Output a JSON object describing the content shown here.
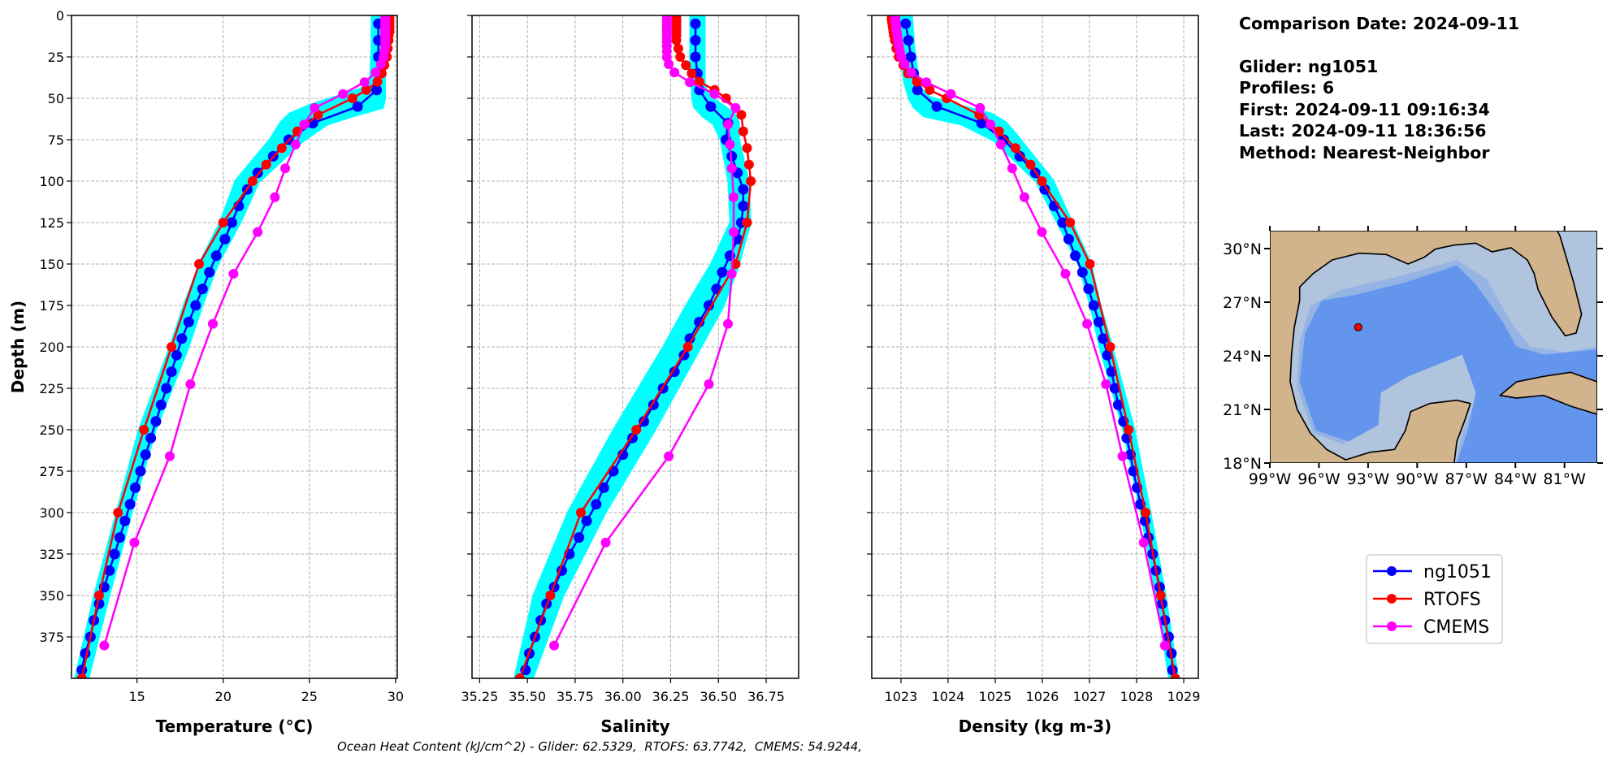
{
  "info": {
    "comparison_date": "Comparison Date: 2024-09-11",
    "glider": "Glider: ng1051",
    "profiles": "Profiles: 6",
    "first": "First: 2024-09-11 09:16:34",
    "last": "Last: 2024-09-11 18:36:56",
    "method": "Method: Nearest-Neighbor"
  },
  "footer": "Ocean Heat Content (kJ/cm^2) - Glider: 62.5329,  RTOFS: 63.7742,  CMEMS: 54.9244,",
  "legend": {
    "placement": "right, below map",
    "items": [
      {
        "label": "ng1051",
        "color": "#0000ff"
      },
      {
        "label": "RTOFS",
        "color": "#ff0000"
      },
      {
        "label": "CMEMS",
        "color": "#ff00ff"
      }
    ],
    "profile_color": "#00ffff"
  },
  "map": {
    "lon_range": [
      -99,
      -79
    ],
    "lat_range": [
      18,
      31
    ],
    "lon_tick_labels": [
      "99°W",
      "96°W",
      "93°W",
      "90°W",
      "87°W",
      "84°W",
      "81°W"
    ],
    "lon_ticks": [
      -99,
      -96,
      -93,
      -90,
      -87,
      -84,
      -81
    ],
    "lat_tick_labels": [
      "18°N",
      "21°N",
      "24°N",
      "27°N",
      "30°N"
    ],
    "lat_ticks": [
      18,
      21,
      24,
      27,
      30
    ],
    "glider_location": {
      "lon": -93.6,
      "lat": 25.6,
      "color": "#ff0000"
    },
    "colors": {
      "land": "#d2b48c",
      "shelf": "#b0c4de",
      "slope": "#95b4e3",
      "deep": "#6495ed"
    }
  },
  "chart_data": [
    {
      "type": "line",
      "xlabel": "Temperature (°C)",
      "ylabel": "Depth (m)",
      "xlim": [
        11.2,
        30.1
      ],
      "ylim": [
        400,
        0
      ],
      "grid": true,
      "xticks": [
        15,
        20,
        25,
        30
      ],
      "xtick_labels": [
        "15",
        "20",
        "25",
        "30"
      ],
      "yticks": [
        0,
        25,
        50,
        75,
        100,
        125,
        150,
        175,
        200,
        225,
        250,
        275,
        300,
        325,
        350,
        375
      ],
      "ytick_labels": [
        "0",
        "25",
        "50",
        "75",
        "100",
        "125",
        "150",
        "175",
        "200",
        "225",
        "250",
        "275",
        "300",
        "325",
        "350",
        "375"
      ],
      "glider_profile_range": {
        "depths": [
          0,
          20,
          40,
          45,
          50,
          55,
          60,
          65,
          75,
          100,
          125,
          150,
          175,
          200,
          250,
          300,
          350,
          400
        ],
        "min": [
          28.7,
          28.7,
          28.6,
          28.0,
          26.5,
          25.0,
          23.9,
          23.4,
          22.8,
          20.8,
          19.9,
          18.7,
          17.8,
          17.0,
          15.2,
          13.9,
          12.6,
          11.5
        ],
        "max": [
          29.3,
          29.3,
          29.3,
          29.3,
          29.3,
          29.2,
          27.5,
          26.0,
          24.6,
          22.0,
          20.9,
          19.6,
          18.7,
          17.9,
          16.0,
          14.6,
          13.3,
          12.1
        ]
      },
      "series": [
        {
          "name": "ng1051",
          "depths": [
            5,
            15,
            25,
            35,
            45,
            55,
            65,
            75,
            85,
            95,
            105,
            115,
            125,
            135,
            145,
            155,
            165,
            175,
            185,
            195,
            205,
            215,
            225,
            235,
            245,
            255,
            265,
            275,
            285,
            295,
            305,
            315,
            325,
            335,
            345,
            355,
            365,
            375,
            385,
            395
          ],
          "values": [
            29.0,
            29.0,
            29.0,
            29.0,
            28.9,
            27.8,
            25.2,
            23.8,
            22.9,
            22.0,
            21.4,
            20.9,
            20.5,
            20.1,
            19.6,
            19.2,
            18.8,
            18.4,
            18.0,
            17.6,
            17.3,
            17.0,
            16.7,
            16.4,
            16.1,
            15.8,
            15.5,
            15.2,
            14.9,
            14.6,
            14.3,
            14.0,
            13.7,
            13.4,
            13.1,
            12.8,
            12.5,
            12.3,
            12.0,
            11.8
          ]
        },
        {
          "name": "RTOFS",
          "depths": [
            0,
            2,
            4,
            6,
            8,
            10,
            12,
            15,
            20,
            25,
            30,
            35,
            40,
            45,
            50,
            60,
            70,
            80,
            90,
            100,
            125,
            150,
            200,
            250,
            300,
            350,
            400
          ],
          "values": [
            29.65,
            29.65,
            29.65,
            29.65,
            29.65,
            29.65,
            29.6,
            29.6,
            29.55,
            29.5,
            29.35,
            29.2,
            28.95,
            28.3,
            27.5,
            25.5,
            24.3,
            23.4,
            22.5,
            21.7,
            20.0,
            18.6,
            17.0,
            15.4,
            13.9,
            12.8,
            11.8
          ]
        },
        {
          "name": "CMEMS",
          "depths": [
            0.5,
            1.5,
            2.6,
            3.8,
            5.1,
            6.4,
            7.9,
            9.6,
            11.4,
            13.5,
            15.8,
            18.5,
            21.6,
            25.2,
            29.4,
            34.4,
            40.3,
            47.4,
            55.8,
            65.8,
            77.9,
            92.3,
            109.7,
            130.7,
            155.9,
            186.1,
            222.5,
            266.0,
            318.1,
            380.2
          ],
          "values": [
            29.4,
            29.4,
            29.4,
            29.4,
            29.4,
            29.4,
            29.4,
            29.4,
            29.4,
            29.4,
            29.4,
            29.4,
            29.35,
            29.3,
            29.15,
            28.85,
            28.2,
            26.95,
            25.3,
            24.7,
            24.2,
            23.6,
            23.0,
            22.0,
            20.6,
            19.4,
            18.1,
            16.9,
            14.85,
            13.1
          ]
        }
      ]
    },
    {
      "type": "line",
      "xlabel": "Salinity",
      "xlim": [
        35.21,
        36.92
      ],
      "ylim": [
        400,
        0
      ],
      "grid": true,
      "xticks": [
        35.25,
        35.5,
        35.75,
        36.0,
        36.25,
        36.5,
        36.75
      ],
      "xtick_labels": [
        "35.25",
        "35.50",
        "35.75",
        "36.00",
        "36.25",
        "36.50",
        "36.75"
      ],
      "yticks": [
        0,
        25,
        50,
        75,
        100,
        125,
        150,
        175,
        200,
        225,
        250,
        275,
        300,
        325,
        350,
        375
      ],
      "glider_profile_range": {
        "depths": [
          0,
          20,
          40,
          45,
          50,
          55,
          60,
          65,
          75,
          100,
          125,
          150,
          175,
          200,
          250,
          300,
          350,
          400
        ],
        "min": [
          36.36,
          36.36,
          36.36,
          36.37,
          36.37,
          36.38,
          36.42,
          36.48,
          36.52,
          36.56,
          36.57,
          36.47,
          36.34,
          36.22,
          35.96,
          35.72,
          35.54,
          35.44
        ],
        "max": [
          36.42,
          36.42,
          36.42,
          36.43,
          36.46,
          36.52,
          36.58,
          36.6,
          36.6,
          36.65,
          36.66,
          36.6,
          36.52,
          36.4,
          36.16,
          35.9,
          35.68,
          35.52
        ]
      },
      "series": [
        {
          "name": "ng1051",
          "depths": [
            5,
            15,
            25,
            35,
            45,
            55,
            65,
            75,
            85,
            95,
            105,
            115,
            125,
            135,
            145,
            155,
            165,
            175,
            185,
            195,
            205,
            215,
            225,
            235,
            245,
            255,
            265,
            275,
            285,
            295,
            305,
            315,
            325,
            335,
            345,
            355,
            365,
            375,
            385,
            395
          ],
          "values": [
            36.38,
            36.38,
            36.38,
            36.39,
            36.4,
            36.46,
            36.55,
            36.54,
            36.57,
            36.6,
            36.63,
            36.63,
            36.62,
            36.6,
            36.56,
            36.52,
            36.49,
            36.45,
            36.4,
            36.35,
            36.32,
            36.27,
            36.21,
            36.16,
            36.11,
            36.05,
            36.0,
            35.95,
            35.9,
            35.86,
            35.81,
            35.77,
            35.72,
            35.68,
            35.64,
            35.6,
            35.57,
            35.54,
            35.51,
            35.49
          ]
        },
        {
          "name": "RTOFS",
          "depths": [
            0,
            2,
            4,
            6,
            8,
            10,
            12,
            15,
            20,
            25,
            30,
            35,
            40,
            45,
            50,
            60,
            70,
            80,
            90,
            100,
            125,
            150,
            200,
            250,
            300,
            350,
            400
          ],
          "values": [
            36.28,
            36.28,
            36.28,
            36.28,
            36.28,
            36.28,
            36.28,
            36.28,
            36.29,
            36.3,
            36.33,
            36.36,
            36.4,
            36.48,
            36.54,
            36.62,
            36.63,
            36.65,
            36.66,
            36.67,
            36.65,
            36.59,
            36.34,
            36.07,
            35.78,
            35.62,
            35.46
          ]
        },
        {
          "name": "CMEMS",
          "depths": [
            0.5,
            1.5,
            2.6,
            3.8,
            5.1,
            6.4,
            7.9,
            9.6,
            11.4,
            13.5,
            15.8,
            18.5,
            21.6,
            25.2,
            29.4,
            34.4,
            40.3,
            47.4,
            55.8,
            65.8,
            77.9,
            92.3,
            109.7,
            130.7,
            155.9,
            186.1,
            222.5,
            266.0,
            318.1,
            380.2
          ],
          "values": [
            36.23,
            36.23,
            36.23,
            36.23,
            36.23,
            36.23,
            36.23,
            36.23,
            36.23,
            36.23,
            36.23,
            36.23,
            36.23,
            36.23,
            36.24,
            36.27,
            36.35,
            36.48,
            36.59,
            36.55,
            36.56,
            36.57,
            36.58,
            36.58,
            36.57,
            36.55,
            36.45,
            36.24,
            35.91,
            35.64
          ]
        }
      ]
    },
    {
      "type": "line",
      "xlabel": "Density (kg m-3)",
      "xlim": [
        1022.38,
        1029.31
      ],
      "ylim": [
        400,
        0
      ],
      "grid": true,
      "xticks": [
        1023,
        1024,
        1025,
        1026,
        1027,
        1028,
        1029
      ],
      "xtick_labels": [
        "1023",
        "1024",
        "1025",
        "1026",
        "1027",
        "1028",
        "1029"
      ],
      "yticks": [
        0,
        25,
        50,
        75,
        100,
        125,
        150,
        175,
        200,
        225,
        250,
        275,
        300,
        325,
        350,
        375
      ],
      "glider_profile_range": {
        "depths": [
          0,
          20,
          40,
          45,
          50,
          55,
          60,
          65,
          75,
          100,
          125,
          150,
          175,
          200,
          250,
          300,
          350,
          400
        ],
        "min": [
          1022.98,
          1023.0,
          1023.1,
          1023.15,
          1023.2,
          1023.3,
          1023.5,
          1024.3,
          1025.0,
          1025.9,
          1026.35,
          1026.8,
          1027.05,
          1027.25,
          1027.75,
          1028.12,
          1028.45,
          1028.72
        ],
        "max": [
          1023.2,
          1023.25,
          1023.35,
          1023.4,
          1023.6,
          1024.2,
          1024.9,
          1025.2,
          1025.5,
          1026.2,
          1026.6,
          1027.0,
          1027.2,
          1027.45,
          1027.92,
          1028.26,
          1028.58,
          1028.85
        ]
      },
      "series": [
        {
          "name": "ng1051",
          "depths": [
            5,
            15,
            25,
            35,
            45,
            55,
            65,
            75,
            85,
            95,
            105,
            115,
            125,
            135,
            145,
            155,
            165,
            175,
            185,
            195,
            205,
            215,
            225,
            235,
            245,
            255,
            265,
            275,
            285,
            295,
            305,
            315,
            325,
            335,
            345,
            355,
            365,
            375,
            385,
            395
          ],
          "values": [
            1023.1,
            1023.16,
            1023.21,
            1023.27,
            1023.35,
            1023.76,
            1024.71,
            1025.18,
            1025.52,
            1025.85,
            1026.05,
            1026.25,
            1026.43,
            1026.56,
            1026.7,
            1026.85,
            1026.98,
            1027.09,
            1027.2,
            1027.29,
            1027.38,
            1027.47,
            1027.54,
            1027.61,
            1027.72,
            1027.79,
            1027.87,
            1027.93,
            1028.01,
            1028.08,
            1028.18,
            1028.25,
            1028.34,
            1028.41,
            1028.49,
            1028.54,
            1028.6,
            1028.68,
            1028.74,
            1028.76
          ]
        },
        {
          "name": "RTOFS",
          "depths": [
            0,
            2,
            4,
            6,
            8,
            10,
            12,
            15,
            20,
            25,
            30,
            35,
            40,
            45,
            50,
            60,
            70,
            80,
            90,
            100,
            125,
            150,
            200,
            250,
            300,
            350,
            400
          ],
          "values": [
            1022.8,
            1022.8,
            1022.81,
            1022.82,
            1022.83,
            1022.84,
            1022.85,
            1022.87,
            1022.9,
            1022.95,
            1023.05,
            1023.15,
            1023.34,
            1023.61,
            1023.97,
            1024.66,
            1025.08,
            1025.43,
            1025.75,
            1025.99,
            1026.59,
            1027.01,
            1027.44,
            1027.83,
            1028.19,
            1028.51,
            1028.82
          ]
        },
        {
          "name": "CMEMS",
          "depths": [
            0.5,
            1.5,
            2.6,
            3.8,
            5.1,
            6.4,
            7.9,
            9.6,
            11.4,
            13.5,
            15.8,
            18.5,
            21.6,
            25.2,
            29.4,
            34.4,
            40.3,
            47.4,
            55.8,
            65.8,
            77.9,
            92.3,
            109.7,
            130.7,
            155.9,
            186.1,
            222.5,
            266.0,
            318.1,
            380.2
          ],
          "values": [
            1022.88,
            1022.88,
            1022.88,
            1022.89,
            1022.89,
            1022.9,
            1022.9,
            1022.91,
            1022.92,
            1022.93,
            1022.94,
            1022.96,
            1022.98,
            1023.01,
            1023.08,
            1023.22,
            1023.54,
            1024.06,
            1024.68,
            1024.9,
            1025.12,
            1025.36,
            1025.62,
            1025.99,
            1026.49,
            1026.95,
            1027.35,
            1027.7,
            1028.15,
            1028.6
          ]
        }
      ]
    }
  ]
}
